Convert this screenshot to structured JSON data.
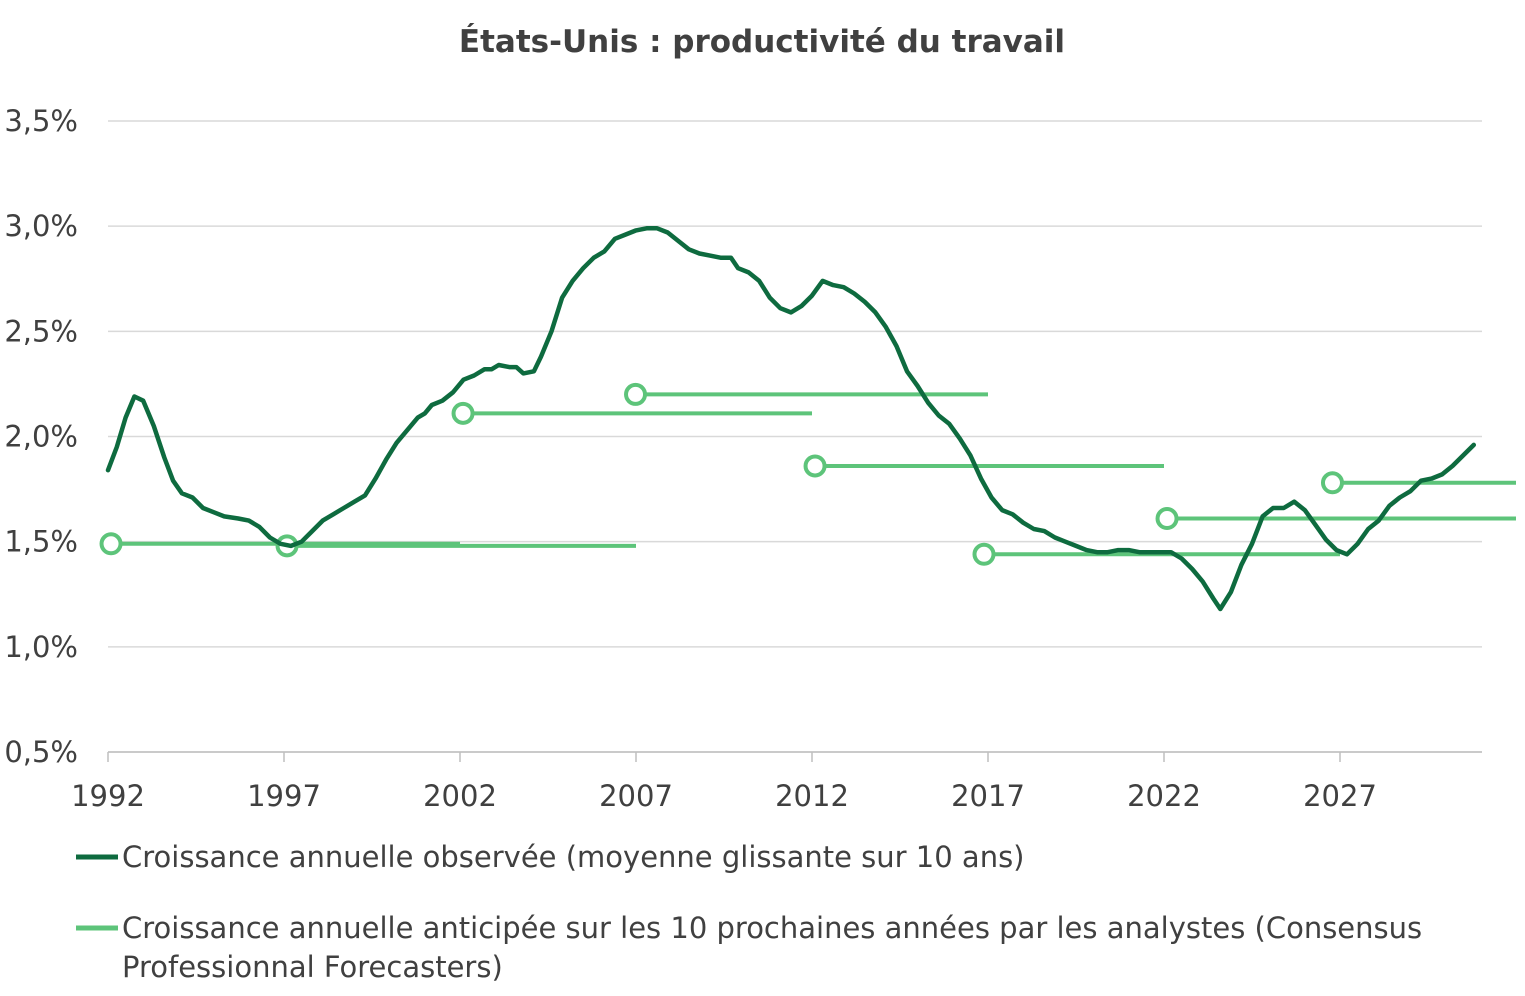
{
  "chart_data": {
    "type": "line",
    "title": "États-Unis : productivité du travail",
    "xlabel": "",
    "ylabel": "",
    "xlim": [
      1992,
      2031
    ],
    "ylim": [
      0.5,
      3.5
    ],
    "grid": true,
    "legend_position": "bottom",
    "x_ticks": [
      1992,
      1997,
      2002,
      2007,
      2012,
      2017,
      2022,
      2027
    ],
    "x_tick_labels": [
      "1992",
      "1997",
      "2002",
      "2007",
      "2012",
      "2017",
      "2022",
      "2027"
    ],
    "y_ticks": [
      0.5,
      1.0,
      1.5,
      2.0,
      2.5,
      3.0,
      3.5
    ],
    "y_tick_labels": [
      "0,5%",
      "1,0%",
      "1,5%",
      "2,0%",
      "2,5%",
      "3,0%",
      "3,5%"
    ],
    "colors": {
      "observed": "#0e6b3f",
      "forecast": "#5dc47a",
      "grid": "#d9d9d9",
      "axis": "#bfbfbf"
    },
    "series": [
      {
        "name": "Croissance annuelle observée (moyenne glissante sur 10 ans)",
        "points": [
          [
            1992.0,
            1.84
          ],
          [
            1992.25,
            1.95
          ],
          [
            1992.5,
            2.09
          ],
          [
            1992.75,
            2.19
          ],
          [
            1993.0,
            2.17
          ],
          [
            1993.3,
            2.05
          ],
          [
            1993.6,
            1.9
          ],
          [
            1993.85,
            1.79
          ],
          [
            1994.1,
            1.73
          ],
          [
            1994.4,
            1.71
          ],
          [
            1994.7,
            1.66
          ],
          [
            1995.0,
            1.64
          ],
          [
            1995.3,
            1.62
          ],
          [
            1995.7,
            1.61
          ],
          [
            1996.0,
            1.6
          ],
          [
            1996.3,
            1.57
          ],
          [
            1996.6,
            1.52
          ],
          [
            1996.9,
            1.49
          ],
          [
            1997.2,
            1.48
          ],
          [
            1997.5,
            1.5
          ],
          [
            1997.8,
            1.55
          ],
          [
            1998.1,
            1.6
          ],
          [
            1998.4,
            1.63
          ],
          [
            1998.7,
            1.66
          ],
          [
            1999.0,
            1.69
          ],
          [
            1999.3,
            1.72
          ],
          [
            1999.6,
            1.8
          ],
          [
            1999.9,
            1.89
          ],
          [
            2000.2,
            1.97
          ],
          [
            2000.5,
            2.03
          ],
          [
            2000.8,
            2.09
          ],
          [
            2001.0,
            2.11
          ],
          [
            2001.2,
            2.15
          ],
          [
            2001.5,
            2.17
          ],
          [
            2001.8,
            2.21
          ],
          [
            2002.1,
            2.27
          ],
          [
            2002.4,
            2.29
          ],
          [
            2002.7,
            2.32
          ],
          [
            2002.9,
            2.32
          ],
          [
            2003.1,
            2.34
          ],
          [
            2003.4,
            2.33
          ],
          [
            2003.6,
            2.33
          ],
          [
            2003.8,
            2.3
          ],
          [
            2004.1,
            2.31
          ],
          [
            2004.3,
            2.38
          ],
          [
            2004.6,
            2.5
          ],
          [
            2004.9,
            2.66
          ],
          [
            2005.2,
            2.74
          ],
          [
            2005.5,
            2.8
          ],
          [
            2005.8,
            2.85
          ],
          [
            2006.1,
            2.88
          ],
          [
            2006.4,
            2.94
          ],
          [
            2006.7,
            2.96
          ],
          [
            2007.0,
            2.98
          ],
          [
            2007.3,
            2.99
          ],
          [
            2007.6,
            2.99
          ],
          [
            2007.9,
            2.97
          ],
          [
            2008.2,
            2.93
          ],
          [
            2008.5,
            2.89
          ],
          [
            2008.8,
            2.87
          ],
          [
            2009.1,
            2.86
          ],
          [
            2009.4,
            2.85
          ],
          [
            2009.7,
            2.85
          ],
          [
            2009.9,
            2.8
          ],
          [
            2010.2,
            2.78
          ],
          [
            2010.5,
            2.74
          ],
          [
            2010.8,
            2.66
          ],
          [
            2011.1,
            2.61
          ],
          [
            2011.4,
            2.59
          ],
          [
            2011.7,
            2.62
          ],
          [
            2012.0,
            2.67
          ],
          [
            2012.3,
            2.74
          ],
          [
            2012.6,
            2.72
          ],
          [
            2012.9,
            2.71
          ],
          [
            2013.2,
            2.68
          ],
          [
            2013.5,
            2.64
          ],
          [
            2013.8,
            2.59
          ],
          [
            2014.1,
            2.52
          ],
          [
            2014.4,
            2.43
          ],
          [
            2014.7,
            2.31
          ],
          [
            2015.0,
            2.24
          ],
          [
            2015.3,
            2.16
          ],
          [
            2015.6,
            2.1
          ],
          [
            2015.9,
            2.06
          ],
          [
            2016.2,
            1.99
          ],
          [
            2016.5,
            1.91
          ],
          [
            2016.8,
            1.8
          ],
          [
            2017.1,
            1.71
          ],
          [
            2017.4,
            1.65
          ],
          [
            2017.7,
            1.63
          ],
          [
            2018.0,
            1.59
          ],
          [
            2018.3,
            1.56
          ],
          [
            2018.6,
            1.55
          ],
          [
            2018.9,
            1.52
          ],
          [
            2019.2,
            1.5
          ],
          [
            2019.5,
            1.48
          ],
          [
            2019.8,
            1.46
          ],
          [
            2020.1,
            1.45
          ],
          [
            2020.4,
            1.45
          ],
          [
            2020.7,
            1.46
          ],
          [
            2021.0,
            1.46
          ],
          [
            2021.3,
            1.45
          ],
          [
            2021.6,
            1.45
          ],
          [
            2021.9,
            1.45
          ],
          [
            2022.2,
            1.45
          ],
          [
            2022.5,
            1.42
          ],
          [
            2022.8,
            1.37
          ],
          [
            2023.1,
            1.31
          ],
          [
            2023.4,
            1.23
          ],
          [
            2023.6,
            1.18
          ],
          [
            2023.9,
            1.26
          ],
          [
            2024.2,
            1.39
          ],
          [
            2024.5,
            1.49
          ],
          [
            2024.8,
            1.62
          ],
          [
            2025.1,
            1.66
          ],
          [
            2025.4,
            1.66
          ],
          [
            2025.7,
            1.69
          ],
          [
            2026.0,
            1.65
          ],
          [
            2026.3,
            1.58
          ],
          [
            2026.6,
            1.51
          ],
          [
            2026.9,
            1.46
          ],
          [
            2027.2,
            1.44
          ],
          [
            2027.5,
            1.49
          ],
          [
            2027.8,
            1.56
          ],
          [
            2028.1,
            1.6
          ],
          [
            2028.4,
            1.67
          ],
          [
            2028.7,
            1.71
          ],
          [
            2029.0,
            1.74
          ],
          [
            2029.3,
            1.79
          ],
          [
            2029.6,
            1.8
          ],
          [
            2029.9,
            1.82
          ],
          [
            2030.2,
            1.86
          ],
          [
            2030.5,
            1.91
          ],
          [
            2030.8,
            1.96
          ]
        ]
      },
      {
        "name": "Croissance annuelle anticipée sur les 10 prochaines années par les analystes (Consensus Professionnal Forecasters)",
        "forecasts": [
          {
            "start": 1992.2,
            "end": 2002.0,
            "value": 1.49
          },
          {
            "start": 1997.2,
            "end": 2007.0,
            "value": 1.48
          },
          {
            "start": 2002.2,
            "end": 2012.0,
            "value": 2.11
          },
          {
            "start": 2007.1,
            "end": 2017.0,
            "value": 2.2
          },
          {
            "start": 2012.2,
            "end": 2022.0,
            "value": 1.86
          },
          {
            "start": 2017.0,
            "end": 2027.0,
            "value": 1.44
          },
          {
            "start": 2022.2,
            "end": 2032.0,
            "value": 1.61
          },
          {
            "start": 2026.9,
            "end": 2032.0,
            "value": 1.78
          }
        ]
      }
    ]
  }
}
